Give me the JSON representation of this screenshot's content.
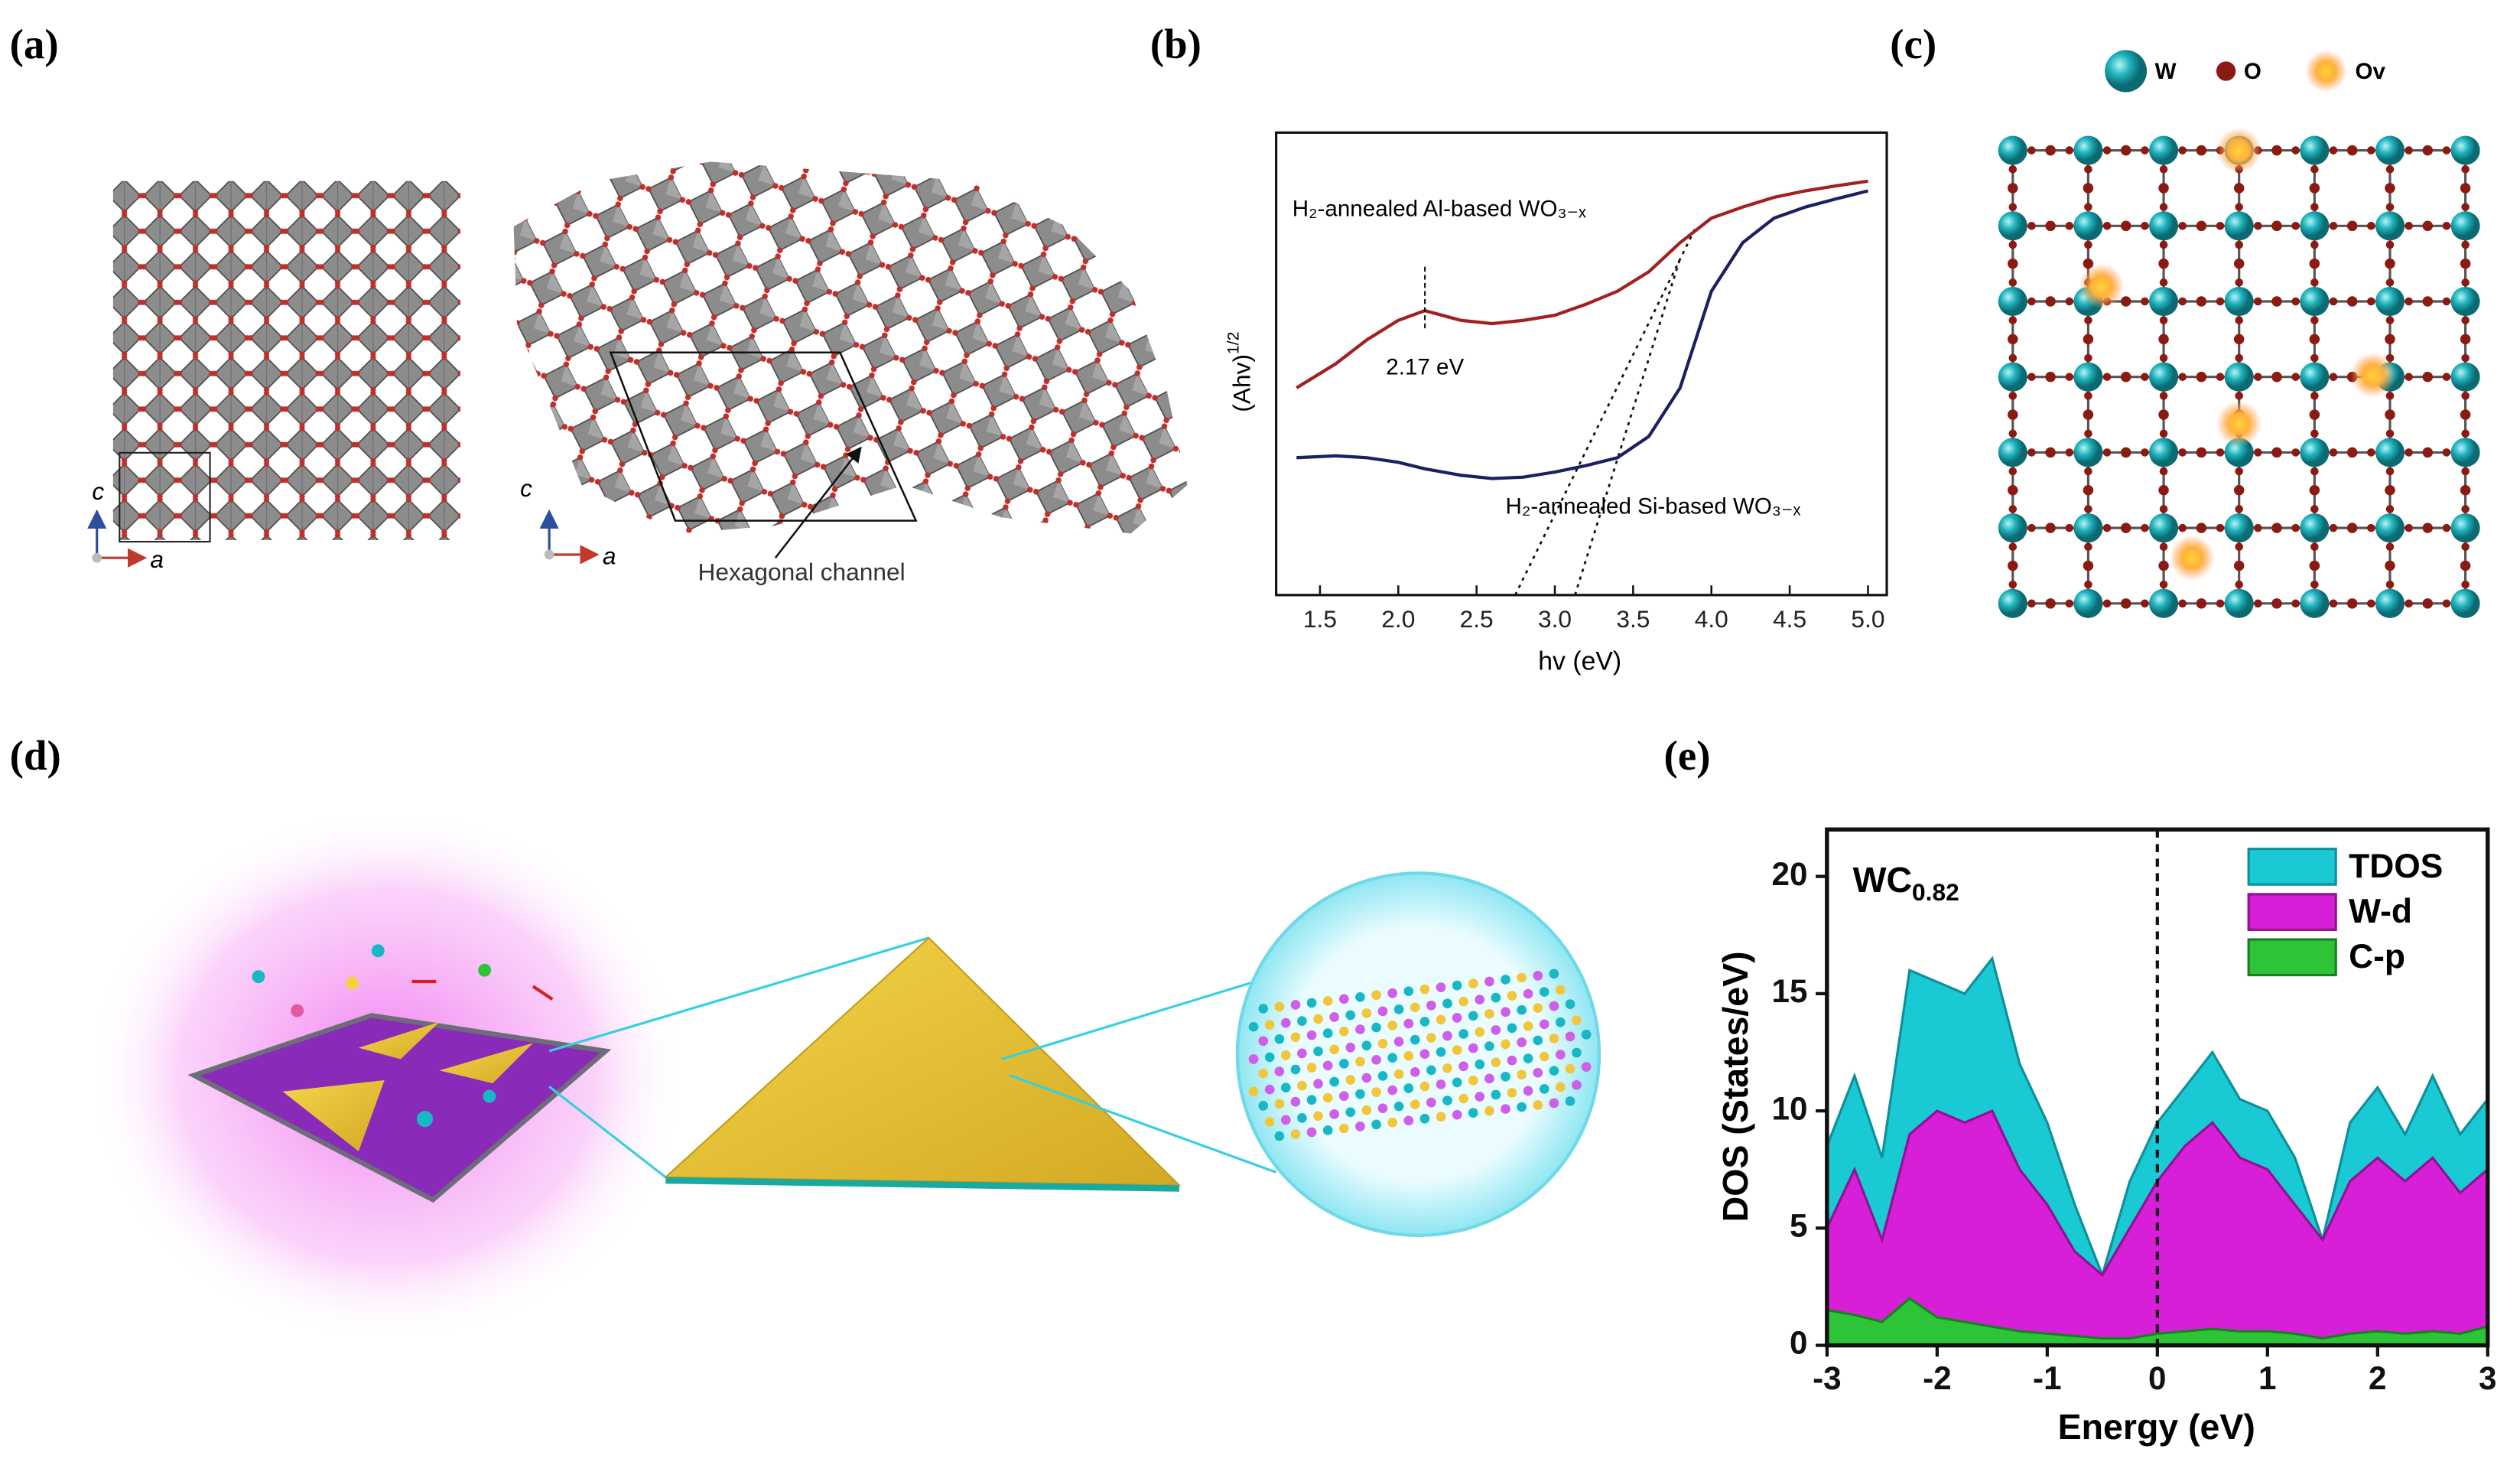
{
  "panel_labels": [
    "(a)",
    "(b)",
    "(c)",
    "(d)",
    "(e)"
  ],
  "panel_a": {
    "axis_labels_left": [
      "c",
      "a"
    ],
    "axis_labels_right": [
      "c",
      "a"
    ],
    "annotation": "Hexagonal channel"
  },
  "panel_c": {
    "legend": [
      "W",
      "O",
      "Ov"
    ]
  },
  "chart_data": [
    {
      "type": "line",
      "x_label": "hv (eV)",
      "y_label": "(Ahv)",
      "y_label_superscript": "1/2",
      "x": [
        1.35,
        1.6,
        1.8,
        2.0,
        2.17,
        2.4,
        2.6,
        2.8,
        3.0,
        3.2,
        3.4,
        3.6,
        3.8,
        4.0,
        4.2,
        4.4,
        4.6,
        4.8,
        5.0
      ],
      "series": [
        {
          "name": "H₂-annealed Al-based WO₃₋ₓ",
          "color": "#a3201f",
          "values": [
            0.448,
            0.5,
            0.552,
            0.594,
            0.615,
            0.594,
            0.587,
            0.594,
            0.605,
            0.629,
            0.657,
            0.699,
            0.762,
            0.815,
            0.839,
            0.86,
            0.874,
            0.885,
            0.895
          ]
        },
        {
          "name": "H₂-annealed Si-based WO₃₋ₓ",
          "color": "#1c2060",
          "values": [
            0.297,
            0.301,
            0.297,
            0.287,
            0.273,
            0.259,
            0.252,
            0.255,
            0.266,
            0.28,
            0.297,
            0.343,
            0.448,
            0.657,
            0.762,
            0.815,
            0.839,
            0.857,
            0.874
          ]
        }
      ],
      "xlim": [
        1.22,
        5.12
      ],
      "xticks": [
        1.5,
        {
          "value": 2,
          "label": "2.0"
        },
        2.5,
        {
          "value": 3,
          "label": "3.0"
        },
        3.5,
        {
          "value": 4,
          "label": "4.0"
        },
        4.5,
        {
          "value": 5,
          "label": "5.0"
        }
      ],
      "ylim": [
        0,
        1
      ],
      "annotation": {
        "text": "2.17 eV",
        "x": 2.17
      }
    },
    {
      "type": "area",
      "x_label": "Energy (eV)",
      "y_label": "DOS (States/eV)",
      "annotation": "WC",
      "annotation_subscript": "0.82",
      "x": [
        -3,
        -2.75,
        -2.5,
        -2.25,
        -2,
        -1.75,
        -1.5,
        -1.25,
        -1,
        -0.75,
        -0.5,
        -0.25,
        0,
        0.25,
        0.5,
        0.75,
        1,
        1.25,
        1.5,
        1.75,
        2,
        2.25,
        2.5,
        2.75,
        3
      ],
      "series": [
        {
          "name": "TDOS",
          "color": "#19c9d3",
          "values": [
            8.5,
            11.5,
            8,
            16,
            15.5,
            15,
            16.5,
            12,
            9.5,
            6,
            3,
            7,
            9.5,
            11,
            12.5,
            10.5,
            10,
            8,
            4.5,
            9.5,
            11,
            9,
            11.5,
            9,
            10.5
          ]
        },
        {
          "name": "W-d",
          "color": "#d81fd8",
          "values": [
            5,
            7.5,
            4.5,
            9,
            10,
            9.5,
            10,
            7.5,
            6,
            4,
            3,
            5,
            7,
            8.5,
            9.5,
            8,
            7.5,
            6,
            4.5,
            7,
            8,
            7,
            8,
            6.5,
            7.5
          ]
        },
        {
          "name": "C-p",
          "color": "#2ec437",
          "values": [
            1.5,
            1.3,
            1,
            2,
            1.2,
            1,
            0.8,
            0.6,
            0.5,
            0.4,
            0.3,
            0.3,
            0.5,
            0.6,
            0.7,
            0.6,
            0.6,
            0.5,
            0.3,
            0.5,
            0.6,
            0.5,
            0.6,
            0.5,
            0.8
          ]
        }
      ],
      "xlim": [
        -3,
        3
      ],
      "xticks": [
        -3,
        -2,
        -1,
        0,
        1,
        2,
        3
      ],
      "ylim": [
        0,
        22
      ],
      "yticks": [
        0,
        5,
        10,
        15,
        20
      ],
      "vline_x": 0,
      "legend": "upper right"
    }
  ]
}
